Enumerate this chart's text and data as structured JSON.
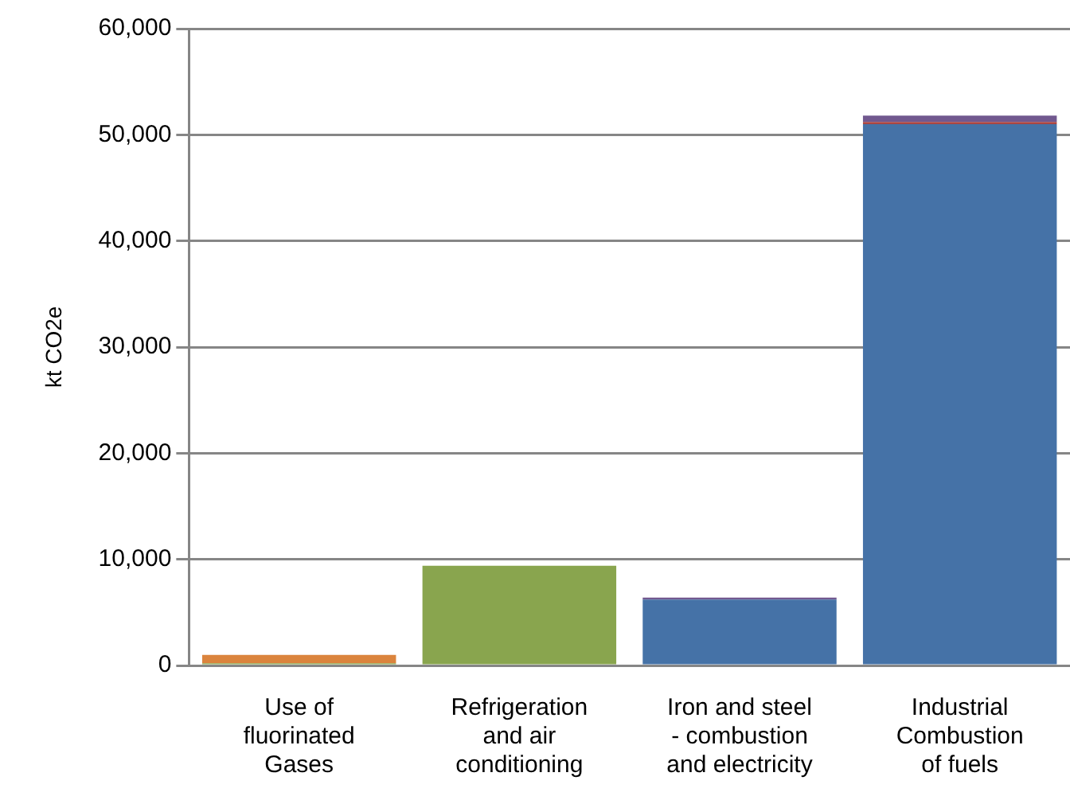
{
  "chart_data": {
    "type": "bar",
    "stacked": true,
    "ylabel": "kt CO2e",
    "categories": [
      "Use of fluorinated Gases",
      "Refrigeration and air conditioning",
      "Iron and steel - combustion and electricity",
      "Industrial Combustion of fuels"
    ],
    "series": [
      {
        "color": "#4572a7",
        "values": [
          0,
          0,
          6200,
          51000
        ]
      },
      {
        "color": "#aa4643",
        "values": [
          0,
          0,
          0,
          200
        ]
      },
      {
        "color": "#89a54e",
        "values": [
          200,
          9400,
          0,
          0
        ]
      },
      {
        "color": "#71588f",
        "values": [
          0,
          0,
          200,
          600
        ]
      },
      {
        "color": "#db843d",
        "values": [
          800,
          0,
          0,
          0
        ]
      }
    ],
    "ylim": [
      0,
      60000
    ],
    "yticks": [
      0,
      {
        "value": 10000,
        "label": "10,000"
      },
      {
        "value": 20000,
        "label": "20,000"
      },
      {
        "value": 30000,
        "label": "30,000"
      },
      {
        "value": 40000,
        "label": "40,000"
      },
      {
        "value": 50000,
        "label": "50,000"
      },
      {
        "value": 60000,
        "label": "60,000"
      }
    ],
    "grid": "y",
    "legend": false
  }
}
